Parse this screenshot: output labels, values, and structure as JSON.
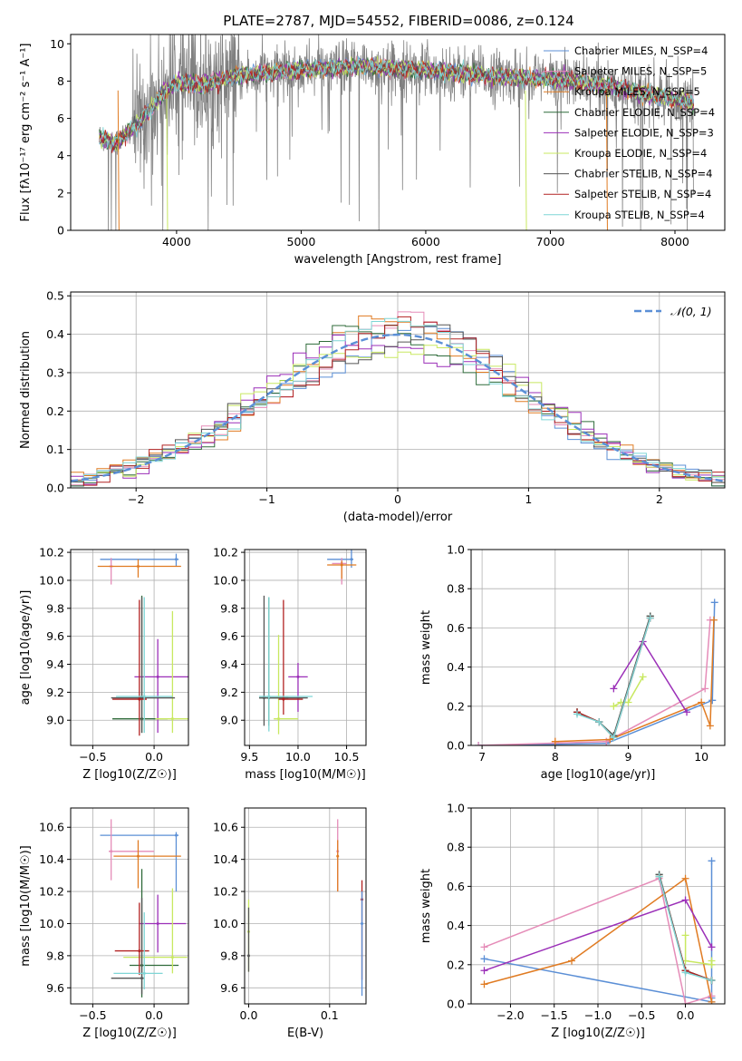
{
  "figure_title": "PLATE=2787, MJD=54552, FIBERID=0086, z=0.124",
  "colors": {
    "chabrier_miles": "#5b8fd6",
    "salpeter_miles": "#e58cb8",
    "kroupa_miles": "#e07b22",
    "chabrier_elodie": "#2f6b3a",
    "salpeter_elodie": "#9b2fb8",
    "kroupa_elodie": "#c8e860",
    "chabrier_stelib": "#555555",
    "salpeter_stelib": "#b22222",
    "kroupa_stelib": "#7fd6d6",
    "data": "#808080",
    "gaussian": "#5b8fd6",
    "grid": "#b0b0b0"
  },
  "chart_data": [
    {
      "type": "line",
      "id": "spectrum",
      "xlabel": "wavelength [Angstrom, rest frame]",
      "ylabel": "Flux [fλ10⁻¹⁷ erg cm⁻² s⁻¹ A⁻¹]",
      "xlim": [
        3150,
        8400
      ],
      "ylim": [
        0,
        10.5
      ],
      "xticks": [
        "4000",
        "5000",
        "6000",
        "7000",
        "8000"
      ],
      "yticks": [
        "0",
        "2",
        "4",
        "6",
        "8",
        "10"
      ],
      "legend": "right",
      "legend_entries": [
        "Chabrier MILES, N_SSP=4",
        "Salpeter MILES, N_SSP=5",
        "Kroupa MILES, N_SSP=5",
        "Chabrier ELODIE, N_SSP=4",
        "Salpeter ELODIE, N_SSP=3",
        "Kroupa ELODIE, N_SSP=4",
        "Chabrier STELIB, N_SSP=4",
        "Salpeter STELIB, N_SSP=4",
        "Kroupa STELIB, N_SSP=4"
      ],
      "continuum": {
        "x": [
          3380,
          3500,
          3700,
          3900,
          4000,
          4200,
          4500,
          5000,
          5500,
          6000,
          6500,
          7000,
          7500,
          8000,
          8150
        ],
        "y": [
          5.0,
          4.6,
          5.8,
          7.4,
          7.9,
          7.8,
          8.3,
          8.6,
          8.8,
          8.6,
          8.3,
          8.1,
          7.7,
          7.0,
          6.8
        ]
      }
    },
    {
      "type": "bar",
      "id": "residuals",
      "xlabel": "(data-model)/error",
      "ylabel": "Normed distribution",
      "xlim": [
        -2.5,
        2.5
      ],
      "ylim": [
        0,
        0.51
      ],
      "xticks": [
        "−2",
        "−1",
        "0",
        "1",
        "2"
      ],
      "yticks": [
        "0.0",
        "0.1",
        "0.2",
        "0.3",
        "0.4",
        "0.5"
      ],
      "legend": "top-right",
      "legend_entry": "𝒩(0, 1)",
      "bins": 50,
      "gaussian": {
        "mean": 0,
        "sigma": 1
      }
    },
    {
      "type": "scatter",
      "id": "age_vs_Z",
      "xlabel": "Z [log10(Z/Z☉)]",
      "ylabel": "age  [log10(age/yr)]",
      "xlim": [
        -0.68,
        0.28
      ],
      "ylim": [
        8.82,
        10.22
      ],
      "xticks": [
        "−0.5",
        "0.0"
      ],
      "yticks": [
        "9.0",
        "9.2",
        "9.4",
        "9.6",
        "9.8",
        "10.0",
        "10.2"
      ],
      "points": [
        {
          "model": "chabrier_miles",
          "x": 0.18,
          "y": 10.15,
          "xerr": [
            0.62,
            0.02
          ],
          "yerr": [
            0.05,
            0.04
          ]
        },
        {
          "model": "salpeter_miles",
          "x": -0.35,
          "y": 10.1,
          "xerr": [
            0.02,
            0.02
          ],
          "yerr": [
            0.13,
            0.06
          ]
        },
        {
          "model": "kroupa_miles",
          "x": -0.13,
          "y": 10.1,
          "xerr": [
            0.33,
            0.35
          ],
          "yerr": [
            0.08,
            0.05
          ]
        },
        {
          "model": "chabrier_elodie",
          "x": -0.1,
          "y": 9.01,
          "xerr": [
            0.24,
            0.21
          ],
          "yerr": [
            0.1,
            0.88
          ]
        },
        {
          "model": "salpeter_elodie",
          "x": 0.03,
          "y": 9.31,
          "xerr": [
            0.19,
            0.25
          ],
          "yerr": [
            0.4,
            0.27
          ]
        },
        {
          "model": "kroupa_elodie",
          "x": 0.15,
          "y": 9.01,
          "xerr": [
            0.14,
            0.17
          ],
          "yerr": [
            0.1,
            0.77
          ]
        },
        {
          "model": "chabrier_stelib",
          "x": -0.1,
          "y": 9.16,
          "xerr": [
            0.25,
            0.27
          ],
          "yerr": [
            0.25,
            0.72
          ]
        },
        {
          "model": "salpeter_stelib",
          "x": -0.12,
          "y": 9.15,
          "xerr": [
            0.22,
            0.06
          ],
          "yerr": [
            0.26,
            0.71
          ]
        },
        {
          "model": "kroupa_stelib",
          "x": -0.08,
          "y": 9.17,
          "xerr": [
            0.23,
            0.23
          ],
          "yerr": [
            0.26,
            0.71
          ]
        }
      ]
    },
    {
      "type": "scatter",
      "id": "age_vs_mass",
      "xlabel": "mass [log10(M/M☉)]",
      "ylabel": "",
      "xlim": [
        9.45,
        10.7
      ],
      "ylim": [
        8.82,
        10.22
      ],
      "xticks": [
        "9.5",
        "10.0",
        "10.5"
      ],
      "yticks": [
        "9.0",
        "9.2",
        "9.4",
        "9.6",
        "9.8",
        "10.0",
        "10.2"
      ],
      "points": [
        {
          "model": "chabrier_miles",
          "x": 10.55,
          "y": 10.15,
          "xerr": [
            0.25,
            0.02
          ],
          "yerr": [
            0.06,
            0.62
          ]
        },
        {
          "model": "salpeter_miles",
          "x": 10.45,
          "y": 10.12,
          "xerr": [
            0.1,
            0.05
          ],
          "yerr": [
            0.15,
            0.04
          ]
        },
        {
          "model": "kroupa_miles",
          "x": 10.45,
          "y": 10.11,
          "xerr": [
            0.15,
            0.15
          ],
          "yerr": [
            0.1,
            0.03
          ]
        },
        {
          "model": "chabrier_elodie",
          "x": 9.7,
          "y": 9.16,
          "xerr": [
            0.1,
            0.2
          ],
          "yerr": [
            0.2,
            0.72
          ]
        },
        {
          "model": "salpeter_elodie",
          "x": 10.0,
          "y": 9.31,
          "xerr": [
            0.1,
            0.1
          ],
          "yerr": [
            0.25,
            0.1
          ]
        },
        {
          "model": "kroupa_elodie",
          "x": 9.8,
          "y": 9.01,
          "xerr": [
            0.05,
            0.2
          ],
          "yerr": [
            0.11,
            0.6
          ]
        },
        {
          "model": "chabrier_stelib",
          "x": 9.65,
          "y": 9.16,
          "xerr": [
            0.05,
            0.45
          ],
          "yerr": [
            0.2,
            0.73
          ]
        },
        {
          "model": "salpeter_stelib",
          "x": 9.85,
          "y": 9.15,
          "xerr": [
            0.05,
            0.2
          ],
          "yerr": [
            0.11,
            0.71
          ]
        },
        {
          "model": "kroupa_stelib",
          "x": 9.7,
          "y": 9.17,
          "xerr": [
            0.1,
            0.45
          ],
          "yerr": [
            0.25,
            0.71
          ]
        }
      ]
    },
    {
      "type": "line",
      "id": "mass_weight_vs_age",
      "xlabel": "age  [log10(age/yr)]",
      "ylabel": "mass weight",
      "xlim": [
        6.85,
        10.32
      ],
      "ylim": [
        0,
        1.0
      ],
      "xticks": [
        "7",
        "8",
        "9",
        "10"
      ],
      "yticks": [
        "0.0",
        "0.2",
        "0.4",
        "0.6",
        "0.8",
        "1.0"
      ],
      "series": [
        {
          "model": "chabrier_miles",
          "x": [
            6.95,
            8.7,
            10.15,
            10.18
          ],
          "y": [
            0.0,
            0.01,
            0.23,
            0.73
          ]
        },
        {
          "model": "salpeter_miles",
          "x": [
            6.95,
            8.7,
            10.05,
            10.12
          ],
          "y": [
            0.0,
            0.02,
            0.29,
            0.64
          ]
        },
        {
          "model": "kroupa_miles",
          "x": [
            8.0,
            8.75,
            10.0,
            10.12,
            10.17
          ],
          "y": [
            0.02,
            0.03,
            0.22,
            0.1,
            0.64
          ]
        },
        {
          "model": "chabrier_elodie",
          "x": [
            8.3,
            8.6,
            8.8,
            9.3
          ],
          "y": [
            0.17,
            0.12,
            0.05,
            0.66
          ]
        },
        {
          "model": "salpeter_elodie",
          "x": [
            8.8,
            9.2,
            9.8
          ],
          "y": [
            0.29,
            0.53,
            0.17
          ]
        },
        {
          "model": "kroupa_elodie",
          "x": [
            8.8,
            8.9,
            9.0,
            9.2
          ],
          "y": [
            0.2,
            0.22,
            0.22,
            0.35
          ]
        },
        {
          "model": "chabrier_stelib",
          "x": [
            8.3,
            8.6,
            8.8,
            9.3
          ],
          "y": [
            0.17,
            0.12,
            0.05,
            0.66
          ]
        },
        {
          "model": "salpeter_stelib",
          "x": [
            8.3,
            8.6,
            8.8,
            9.3
          ],
          "y": [
            0.17,
            0.12,
            0.04,
            0.65
          ]
        },
        {
          "model": "kroupa_stelib",
          "x": [
            8.3,
            8.6,
            8.8,
            9.3
          ],
          "y": [
            0.16,
            0.12,
            0.04,
            0.65
          ]
        }
      ]
    },
    {
      "type": "scatter",
      "id": "mass_vs_Z",
      "xlabel": "Z [log10(Z/Z☉)]",
      "ylabel": "mass [log10(M/M☉)]",
      "xlim": [
        -0.68,
        0.28
      ],
      "ylim": [
        9.5,
        10.72
      ],
      "xticks": [
        "−0.5",
        "0.0"
      ],
      "yticks": [
        "9.6",
        "9.8",
        "10.0",
        "10.2",
        "10.4",
        "10.6"
      ],
      "points": [
        {
          "model": "chabrier_miles",
          "x": 0.18,
          "y": 10.55,
          "xerr": [
            0.62,
            0.02
          ],
          "yerr": [
            0.35,
            0.02
          ]
        },
        {
          "model": "salpeter_miles",
          "x": -0.35,
          "y": 10.45,
          "xerr": [
            0.02,
            0.35
          ],
          "yerr": [
            0.18,
            0.2
          ]
        },
        {
          "model": "kroupa_miles",
          "x": -0.13,
          "y": 10.42,
          "xerr": [
            0.2,
            0.35
          ],
          "yerr": [
            0.2,
            0.1
          ]
        },
        {
          "model": "chabrier_elodie",
          "x": -0.1,
          "y": 9.74,
          "xerr": [
            0.1,
            0.3
          ],
          "yerr": [
            0.2,
            0.6
          ]
        },
        {
          "model": "salpeter_elodie",
          "x": 0.03,
          "y": 10.0,
          "xerr": [
            0.15,
            0.23
          ],
          "yerr": [
            0.18,
            0.18
          ]
        },
        {
          "model": "kroupa_elodie",
          "x": 0.15,
          "y": 9.79,
          "xerr": [
            0.4,
            0.12
          ],
          "yerr": [
            0.1,
            0.43
          ]
        },
        {
          "model": "chabrier_stelib",
          "x": -0.1,
          "y": 9.66,
          "xerr": [
            0.25,
            0.02
          ],
          "yerr": [
            0.1,
            0.5
          ]
        },
        {
          "model": "salpeter_stelib",
          "x": -0.12,
          "y": 9.83,
          "xerr": [
            0.2,
            0.08
          ],
          "yerr": [
            0.15,
            0.3
          ]
        },
        {
          "model": "kroupa_stelib",
          "x": -0.08,
          "y": 9.69,
          "xerr": [
            0.25,
            0.15
          ],
          "yerr": [
            0.1,
            0.38
          ]
        }
      ]
    },
    {
      "type": "scatter",
      "id": "mass_vs_ebv",
      "xlabel": "E(B-V)",
      "ylabel": "",
      "xlim": [
        -0.005,
        0.145
      ],
      "ylim": [
        9.5,
        10.72
      ],
      "xticks": [
        "0.0",
        "0.1"
      ],
      "yticks": [
        "9.6",
        "9.8",
        "10.0",
        "10.2",
        "10.4",
        "10.6"
      ],
      "points": [
        {
          "model": "salpeter_miles",
          "x": 0.11,
          "y": 10.45,
          "xerr": [
            0,
            0
          ],
          "yerr": [
            0.25,
            0.2
          ]
        },
        {
          "model": "kroupa_miles",
          "x": 0.11,
          "y": 10.42,
          "xerr": [
            0,
            0
          ],
          "yerr": [
            0.22,
            0.1
          ]
        },
        {
          "model": "kroupa_elodie",
          "x": 0.0,
          "y": 9.95,
          "xerr": [
            0,
            0
          ],
          "yerr": [
            0.25,
            0.2
          ]
        },
        {
          "model": "chabrier_stelib",
          "x": 0.0,
          "y": 9.8,
          "xerr": [
            0,
            0
          ],
          "yerr": [
            0.1,
            0.3
          ]
        },
        {
          "model": "salpeter_stelib",
          "x": 0.14,
          "y": 10.15,
          "xerr": [
            0,
            0
          ],
          "yerr": [
            0.5,
            0.12
          ]
        },
        {
          "model": "chabrier_miles",
          "x": 0.14,
          "y": 10.0,
          "xerr": [
            0,
            0
          ],
          "yerr": [
            0.45,
            0.2
          ]
        }
      ]
    },
    {
      "type": "line",
      "id": "mass_weight_vs_Z",
      "xlabel": "Z [log10(Z/Z☉)]",
      "ylabel": "mass weight",
      "xlim": [
        -2.45,
        0.45
      ],
      "ylim": [
        0,
        1.0
      ],
      "xticks": [
        "−2.0",
        "−1.5",
        "−1.0",
        "−0.5",
        "0.0"
      ],
      "yticks": [
        "0.0",
        "0.2",
        "0.4",
        "0.6",
        "0.8",
        "1.0"
      ],
      "series": [
        {
          "model": "chabrier_miles",
          "x": [
            -2.3,
            0.3,
            0.3,
            0.3
          ],
          "y": [
            0.23,
            0.01,
            0.73,
            0.03
          ]
        },
        {
          "model": "salpeter_miles",
          "x": [
            -2.3,
            -0.3,
            0.0,
            0.3
          ],
          "y": [
            0.29,
            0.64,
            0.0,
            0.04
          ]
        },
        {
          "model": "kroupa_miles",
          "x": [
            -2.3,
            -1.3,
            0.0,
            0.3
          ],
          "y": [
            0.1,
            0.22,
            0.64,
            0.01
          ]
        },
        {
          "model": "chabrier_elodie",
          "x": [
            -0.3,
            0.0,
            0.3
          ],
          "y": [
            0.66,
            0.17,
            0.12
          ]
        },
        {
          "model": "salpeter_elodie",
          "x": [
            -2.3,
            0.0,
            0.3
          ],
          "y": [
            0.17,
            0.53,
            0.29
          ]
        },
        {
          "model": "kroupa_elodie",
          "x": [
            0.0,
            0.0,
            0.3,
            0.3
          ],
          "y": [
            0.35,
            0.22,
            0.2,
            0.22
          ]
        },
        {
          "model": "chabrier_stelib",
          "x": [
            -0.3,
            0.0,
            0.3
          ],
          "y": [
            0.66,
            0.17,
            0.12
          ]
        },
        {
          "model": "salpeter_stelib",
          "x": [
            -0.3,
            0.0,
            0.3
          ],
          "y": [
            0.65,
            0.17,
            0.12
          ]
        },
        {
          "model": "kroupa_stelib",
          "x": [
            -0.3,
            0.0,
            0.3
          ],
          "y": [
            0.65,
            0.16,
            0.12
          ]
        }
      ]
    }
  ]
}
